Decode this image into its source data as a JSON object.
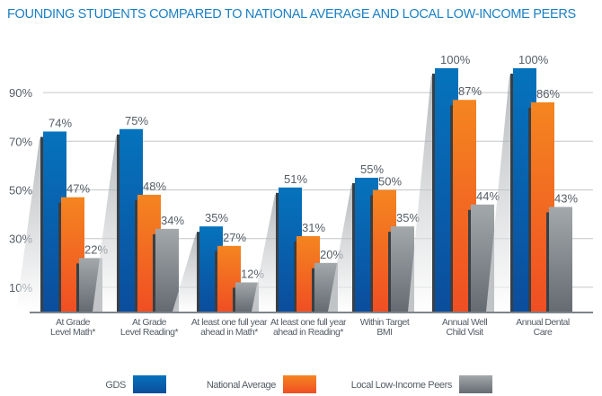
{
  "chart_data": {
    "type": "bar",
    "title": "FOUNDING STUDENTS COMPARED TO NATIONAL AVERAGE AND LOCAL LOW-INCOME PEERS",
    "categories": [
      [
        "At Grade",
        "Level Math*"
      ],
      [
        "At Grade",
        "Level Reading*"
      ],
      [
        "At least one full year",
        "ahead in Math*"
      ],
      [
        "At least one full year",
        "ahead in Reading*"
      ],
      [
        "Within Target",
        "BMI"
      ],
      [
        "Annual Well",
        "Child Visit"
      ],
      [
        "Annual Dental",
        "Care"
      ]
    ],
    "series": [
      {
        "name": "GDS",
        "values": [
          74,
          75,
          35,
          51,
          55,
          100,
          100
        ],
        "color": "#0a63b0"
      },
      {
        "name": "National Average",
        "values": [
          47,
          48,
          27,
          31,
          50,
          87,
          86
        ],
        "color": "#f47b20"
      },
      {
        "name": "Local Low-Income Peers",
        "values": [
          22,
          34,
          12,
          20,
          35,
          44,
          43
        ],
        "color": "#8e959b"
      }
    ],
    "yticks": [
      "10%",
      "30%",
      "50%",
      "70%",
      "90%"
    ],
    "ytick_values": [
      10,
      30,
      50,
      70,
      90
    ],
    "value_suffix": "%",
    "grid": true,
    "legend": "bottom"
  }
}
